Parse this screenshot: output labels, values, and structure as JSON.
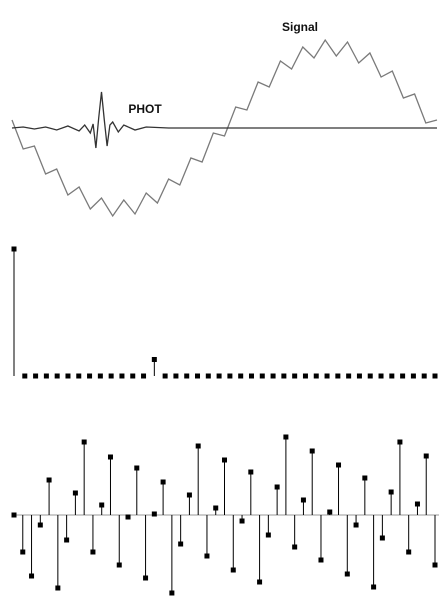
{
  "chart_data": [
    {
      "type": "line",
      "xlim": [
        0,
        38
      ],
      "ylim": [
        -100,
        100
      ],
      "series": [
        {
          "name": "Signal",
          "color": "#7a7a7a",
          "x": [
            0,
            1,
            2,
            3,
            4,
            5,
            6,
            7,
            8,
            9,
            10,
            11,
            12,
            13,
            14,
            15,
            16,
            17,
            18,
            19,
            20,
            21,
            22,
            23,
            24,
            25,
            26,
            27,
            28,
            29,
            30,
            31,
            32,
            33,
            34,
            35,
            36,
            37,
            38
          ],
          "values": [
            8,
            -21,
            -18,
            -46,
            -41,
            -67,
            -59,
            -81,
            -70,
            -88,
            -72,
            -86,
            -65,
            -75,
            -51,
            -57,
            -30,
            -34,
            -5,
            -8,
            21,
            18,
            46,
            41,
            67,
            59,
            81,
            70,
            88,
            72,
            86,
            65,
            75,
            51,
            57,
            30,
            34,
            5,
            8
          ]
        },
        {
          "name": "PHOT",
          "color": "#333333",
          "x": [
            0,
            1,
            2,
            3,
            4,
            5,
            6,
            6.5,
            7,
            7.25,
            7.5,
            7.75,
            8,
            8.25,
            8.5,
            8.75,
            9,
            9.5,
            10,
            11,
            12,
            14,
            16,
            18,
            20,
            22,
            24,
            26,
            28,
            30,
            32,
            34,
            36,
            38
          ],
          "values": [
            0,
            1,
            -1,
            1,
            -2,
            2,
            -3,
            3,
            -5,
            4,
            -20,
            10,
            36,
            8,
            -18,
            3,
            6,
            -4,
            3,
            -2,
            1,
            0,
            0,
            0,
            0,
            0,
            0,
            0,
            0,
            0,
            0,
            0,
            0,
            0
          ]
        }
      ]
    },
    {
      "type": "stem",
      "ylim": [
        0,
        100
      ],
      "color": "#000000",
      "values": [
        100,
        0,
        0,
        0,
        0,
        0,
        0,
        0,
        0,
        0,
        0,
        0,
        0,
        13,
        0,
        0,
        0,
        0,
        0,
        0,
        0,
        0,
        0,
        0,
        0,
        0,
        0,
        0,
        0,
        0,
        0,
        0,
        0,
        0,
        0,
        0,
        0,
        0,
        0,
        0
      ]
    },
    {
      "type": "stem",
      "ylim": [
        -80,
        80
      ],
      "color": "#000000",
      "values": [
        0,
        -37,
        -61,
        -10,
        35,
        -73,
        -25,
        22,
        73,
        -37,
        10,
        58,
        -50,
        -2,
        47,
        -63,
        1,
        33,
        -78,
        -29,
        20,
        69,
        -41,
        7,
        55,
        -55,
        -6,
        43,
        -67,
        -20,
        28,
        78,
        -32,
        15,
        64,
        -45,
        3,
        50,
        -59,
        -10,
        37,
        -72,
        -23,
        23,
        73,
        -37,
        11,
        59,
        -50
      ]
    }
  ]
}
